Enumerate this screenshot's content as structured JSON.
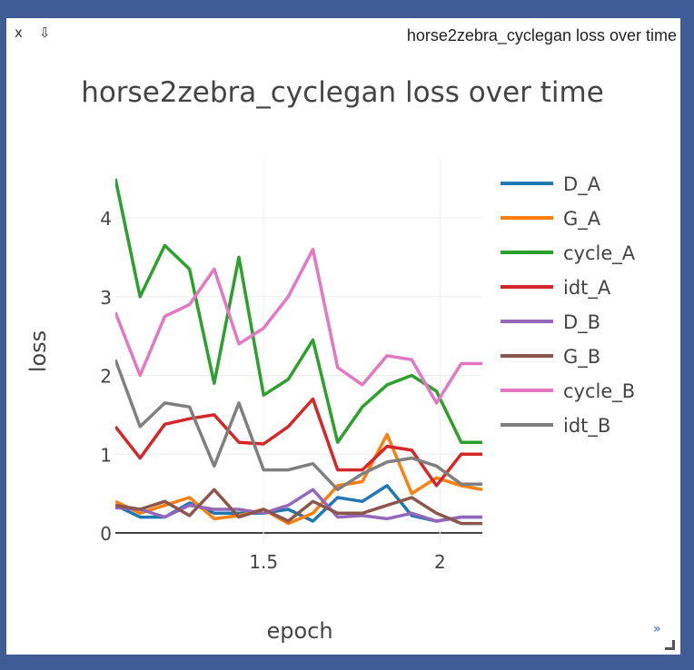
{
  "pane": {
    "close_label": "x",
    "download_label": "⇩",
    "title": "horse2zebra_cyclegan loss over time",
    "expand_label": "»"
  },
  "chart_data": {
    "type": "line",
    "title": "horse2zebra_cyclegan loss over time",
    "xlabel": "epoch",
    "ylabel": "loss",
    "xlim": [
      1.08,
      2.12
    ],
    "ylim": [
      -0.15,
      4.75
    ],
    "xticks": [
      1.5,
      2
    ],
    "xtick_labels": [
      "1.5",
      "2"
    ],
    "yticks": [
      0,
      1,
      2,
      3,
      4
    ],
    "ytick_labels": [
      "0",
      "1",
      "2",
      "3",
      "4"
    ],
    "grid": true,
    "legend_position": "right",
    "x": [
      1.08,
      1.15,
      1.22,
      1.29,
      1.36,
      1.43,
      1.5,
      1.57,
      1.64,
      1.71,
      1.78,
      1.85,
      1.92,
      1.99,
      2.06,
      2.12
    ],
    "series": [
      {
        "name": "D_A",
        "color": "#1f77b4",
        "values": [
          0.35,
          0.2,
          0.2,
          0.38,
          0.25,
          0.25,
          0.25,
          0.3,
          0.15,
          0.45,
          0.4,
          0.6,
          0.22,
          0.15,
          0.2,
          0.2
        ]
      },
      {
        "name": "G_A",
        "color": "#ff7f0e",
        "values": [
          0.4,
          0.25,
          0.35,
          0.45,
          0.18,
          0.22,
          0.3,
          0.12,
          0.25,
          0.6,
          0.65,
          1.25,
          0.5,
          0.7,
          0.6,
          0.55
        ]
      },
      {
        "name": "cycle_A",
        "color": "#2ca02c",
        "values": [
          4.5,
          3.0,
          3.65,
          3.35,
          1.9,
          3.5,
          1.75,
          1.95,
          2.45,
          1.15,
          1.6,
          1.88,
          2.0,
          1.8,
          1.15,
          1.15
        ]
      },
      {
        "name": "idt_A",
        "color": "#d62728",
        "values": [
          1.35,
          0.95,
          1.38,
          1.45,
          1.5,
          1.15,
          1.13,
          1.35,
          1.7,
          0.8,
          0.8,
          1.1,
          1.05,
          0.6,
          1.0,
          1.0
        ]
      },
      {
        "name": "D_B",
        "color": "#9467bd",
        "values": [
          0.32,
          0.3,
          0.2,
          0.35,
          0.3,
          0.3,
          0.25,
          0.35,
          0.55,
          0.2,
          0.22,
          0.18,
          0.25,
          0.15,
          0.2,
          0.2
        ]
      },
      {
        "name": "G_B",
        "color": "#8c564b",
        "values": [
          0.35,
          0.3,
          0.4,
          0.22,
          0.55,
          0.2,
          0.3,
          0.15,
          0.4,
          0.25,
          0.25,
          0.35,
          0.45,
          0.25,
          0.12,
          0.12
        ]
      },
      {
        "name": "cycle_B",
        "color": "#e377c2",
        "values": [
          2.8,
          2.0,
          2.75,
          2.9,
          3.35,
          2.4,
          2.6,
          3.0,
          3.6,
          2.1,
          1.88,
          2.25,
          2.2,
          1.65,
          2.15,
          2.15
        ]
      },
      {
        "name": "idt_B",
        "color": "#7f7f7f",
        "values": [
          2.2,
          1.35,
          1.65,
          1.6,
          0.85,
          1.65,
          0.8,
          0.8,
          0.88,
          0.55,
          0.75,
          0.9,
          0.95,
          0.85,
          0.62,
          0.62
        ]
      }
    ]
  }
}
